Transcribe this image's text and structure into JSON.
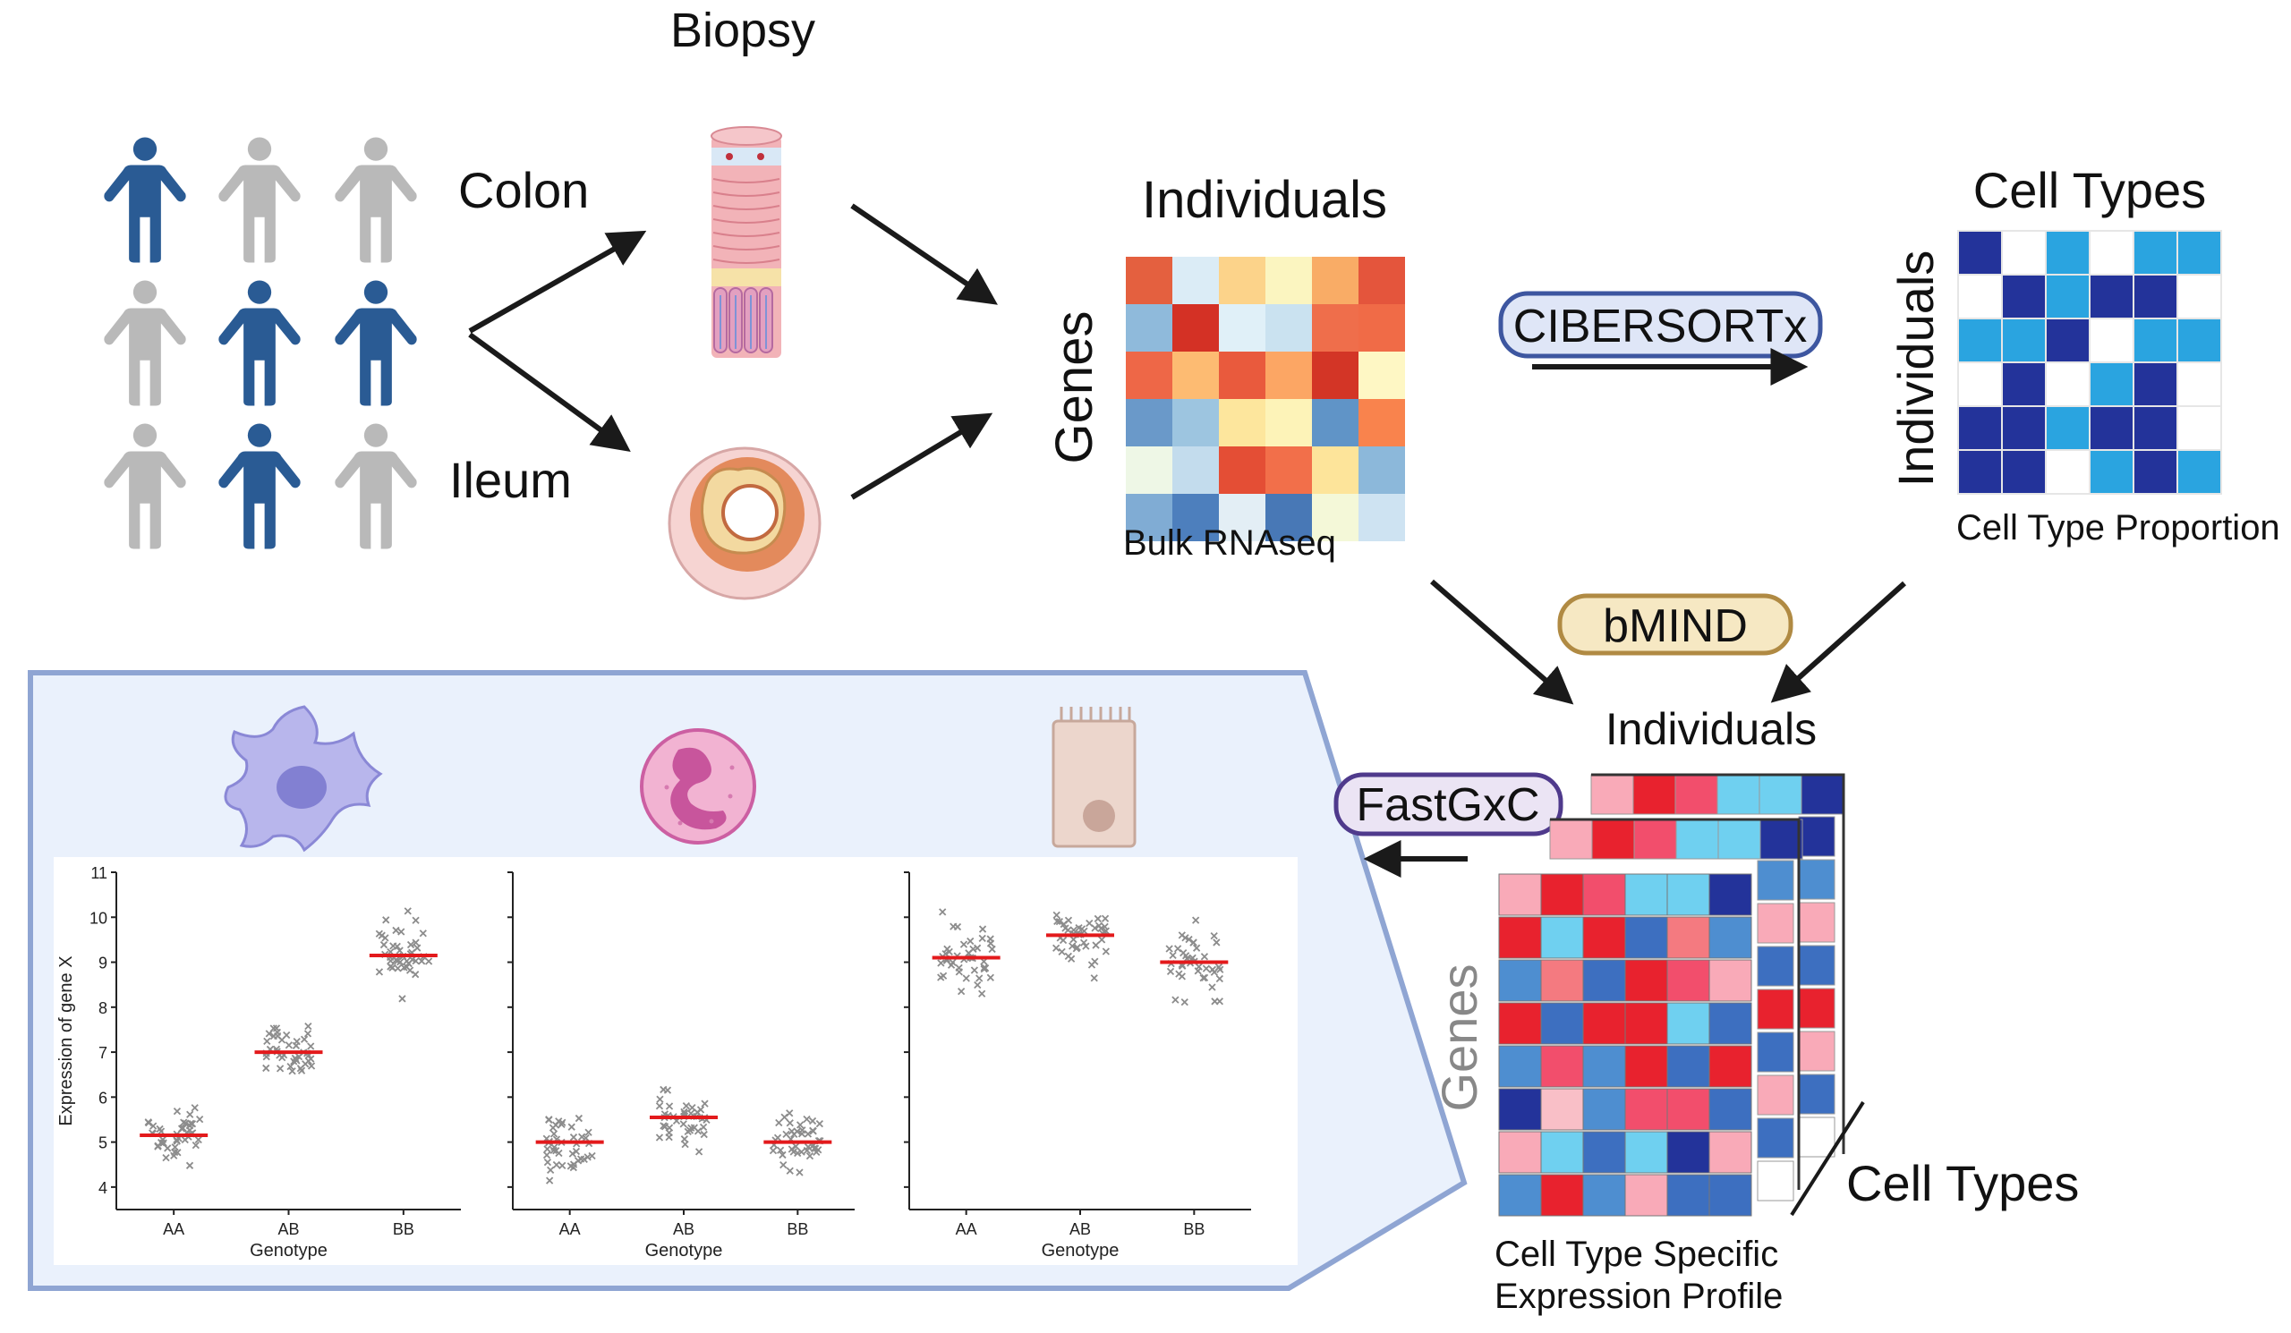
{
  "labels": {
    "biopsy": "Biopsy",
    "colon": "Colon",
    "ileum": "Ileum",
    "individuals_top": "Individuals",
    "genes_left": "Genes",
    "bulk_rnaseq": "Bulk RNAseq",
    "cibersortx": "CIBERSORTx",
    "cell_types_top": "Cell Types",
    "individuals_vertical": "Individuals",
    "cell_type_proportion": "Cell Type Proportion",
    "bmind": "bMIND",
    "individuals_bottom": "Individuals",
    "fastgxc": "FastGxC",
    "genes_bottom": "Genes",
    "cell_types_bottom": "Cell Types",
    "ctsep_line1": "Cell Type Specific",
    "ctsep_line2": "Expression Profile"
  },
  "colors": {
    "person_blue": "#2a5b94",
    "person_gray": "#b9b9b9",
    "cibersortx_fill": "#dfe6f7",
    "cibersortx_border": "#3d56a0",
    "bmind_fill": "#f6e8c3",
    "bmind_border": "#b08a43",
    "fastgxc_fill": "#ebe4f4",
    "fastgxc_border": "#4f3a8c",
    "panel_fill": "#eaf1fc",
    "panel_border": "#8fa5d3",
    "median_line": "#e31a1c",
    "point_color": "#8c8c8c"
  },
  "people_grid": [
    [
      "blue",
      "gray",
      "gray"
    ],
    [
      "gray",
      "blue",
      "blue"
    ],
    [
      "gray",
      "blue",
      "gray"
    ]
  ],
  "bulk_heatmap": [
    [
      "#e4603f",
      "#dbecf6",
      "#fcd38a",
      "#fbf5c0",
      "#f9ac66",
      "#e4553c"
    ],
    [
      "#8fbadb",
      "#d43125",
      "#e0f0f8",
      "#cae2f0",
      "#ef6e4b",
      "#f06b47"
    ],
    [
      "#ee6747",
      "#fdbb72",
      "#e95a3d",
      "#fca664",
      "#d33526",
      "#fef7c4"
    ],
    [
      "#6a99c9",
      "#9dc5e0",
      "#fde69d",
      "#fdf3b8",
      "#6094c7",
      "#f9834d"
    ],
    [
      "#eef7e6",
      "#c3dced",
      "#e44e35",
      "#f26f4a",
      "#fde49a",
      "#8cb8da"
    ],
    [
      "#80acd4",
      "#4d7fbd",
      "#e3eef5",
      "#4878b6",
      "#f4f8d8",
      "#cee3f2"
    ]
  ],
  "proportion_grid": [
    [
      "#23339a",
      "#ffffff",
      "#2aa4e0",
      "#ffffff",
      "#2aa4e0",
      "#2aa4e0"
    ],
    [
      "#ffffff",
      "#23339a",
      "#2aa4e0",
      "#23339a",
      "#23339a",
      "#ffffff"
    ],
    [
      "#2aa4e0",
      "#2aa4e0",
      "#23339a",
      "#ffffff",
      "#2aa4e0",
      "#2aa4e0"
    ],
    [
      "#ffffff",
      "#23339a",
      "#ffffff",
      "#2aa4e0",
      "#23339a",
      "#ffffff"
    ],
    [
      "#23339a",
      "#23339a",
      "#2aa4e0",
      "#23339a",
      "#23339a",
      "#ffffff"
    ],
    [
      "#23339a",
      "#23339a",
      "#ffffff",
      "#2aa4e0",
      "#23339a",
      "#2aa4e0"
    ]
  ],
  "ctsep_front": [
    [
      "#f9aab8",
      "#e8222e",
      "#f24e6c",
      "#6fd0f0",
      "#6fd0f0",
      "#23339a"
    ],
    [
      "#e8222e",
      "#6fd0f0",
      "#e8222e",
      "#3d6fc0",
      "#f47a80",
      "#4e8ed0"
    ],
    [
      "#4e8ed0",
      "#f47a80",
      "#3d6fc0",
      "#e8222e",
      "#f24e6c",
      "#f9aab8"
    ],
    [
      "#e8222e",
      "#3d6fc0",
      "#e8222e",
      "#e8222e",
      "#6fd0f0",
      "#3d6fc0"
    ],
    [
      "#4e8ed0",
      "#f24e6c",
      "#4e8ed0",
      "#e8222e",
      "#3d6fc0",
      "#e8222e"
    ],
    [
      "#23339a",
      "#f9bfc7",
      "#4e8ed0",
      "#f24e6c",
      "#f24e6c",
      "#3d6fc0"
    ],
    [
      "#f9aab8",
      "#6fd0f0",
      "#3d6fc0",
      "#6fd0f0",
      "#23339a",
      "#f9aab8"
    ],
    [
      "#4e8ed0",
      "#e8222e",
      "#4e8ed0",
      "#f9aab8",
      "#3d6fc0",
      "#3d6fc0"
    ]
  ],
  "ctsep_back_col": [
    "#23339a",
    "#4e8ed0",
    "#f9aab8",
    "#3d6fc0",
    "#e8222e",
    "#f9aab8",
    "#3d6fc0",
    "#ffffff"
  ],
  "ctsep_mid_col": [
    "#4e8ed0",
    "#f9aab8",
    "#3d6fc0",
    "#e8222e",
    "#3d6fc0",
    "#f9aab8",
    "#3d6fc0",
    "#ffffff"
  ],
  "chart_data": [
    {
      "type": "scatter",
      "xlabel": "Genotype",
      "ylabel": "Expression of gene X",
      "categories": [
        "AA",
        "AB",
        "BB"
      ],
      "ylim": [
        3.5,
        11
      ],
      "yticks": [
        4,
        5,
        6,
        7,
        8,
        9,
        10,
        11
      ],
      "medians": [
        5.15,
        7.0,
        9.15
      ],
      "spread": [
        0.9,
        1.1,
        1.1
      ]
    },
    {
      "type": "scatter",
      "xlabel": "Genotype",
      "ylabel": "",
      "categories": [
        "AA",
        "AB",
        "BB"
      ],
      "ylim": [
        3.5,
        11
      ],
      "medians": [
        5.0,
        5.55,
        5.0
      ],
      "spread": [
        1.1,
        1.0,
        1.0
      ]
    },
    {
      "type": "scatter",
      "xlabel": "Genotype",
      "ylabel": "",
      "categories": [
        "AA",
        "AB",
        "BB"
      ],
      "ylim": [
        3.5,
        11
      ],
      "medians": [
        9.1,
        9.6,
        9.0
      ],
      "spread": [
        1.1,
        1.1,
        1.3
      ]
    }
  ]
}
